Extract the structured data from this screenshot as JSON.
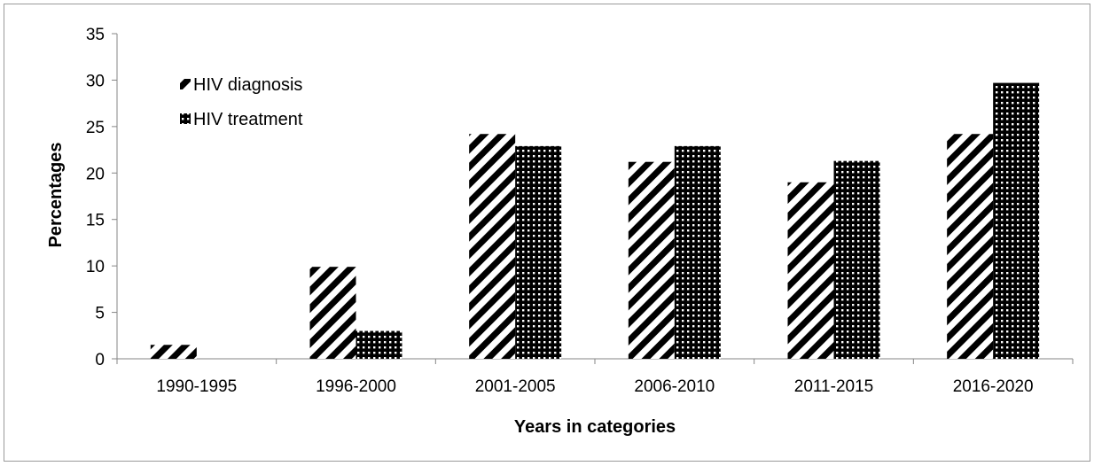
{
  "chart_data": {
    "type": "bar",
    "title": "",
    "xlabel": "Years in categories",
    "ylabel": "Percentages",
    "categories": [
      "1990-1995",
      "1996-2000",
      "2001-2005",
      "2006-2010",
      "2011-2015",
      "2016-2020"
    ],
    "series": [
      {
        "name": "HIV diagnosis",
        "values": [
          1.5,
          9.9,
          24.2,
          21.2,
          19.0,
          24.2
        ],
        "pattern": "diagonal-stripes"
      },
      {
        "name": "HIV treatment",
        "values": [
          0,
          3.0,
          22.9,
          22.9,
          21.3,
          29.7
        ],
        "pattern": "dots"
      }
    ],
    "ylim": [
      0,
      35
    ],
    "yticks": [
      0,
      5,
      10,
      15,
      20,
      25,
      30,
      35
    ],
    "grid": false,
    "legend_position": "top-left",
    "colors": {
      "bar_fill": "#000000",
      "bar_background": "#ffffff",
      "axis": "#868686"
    }
  }
}
